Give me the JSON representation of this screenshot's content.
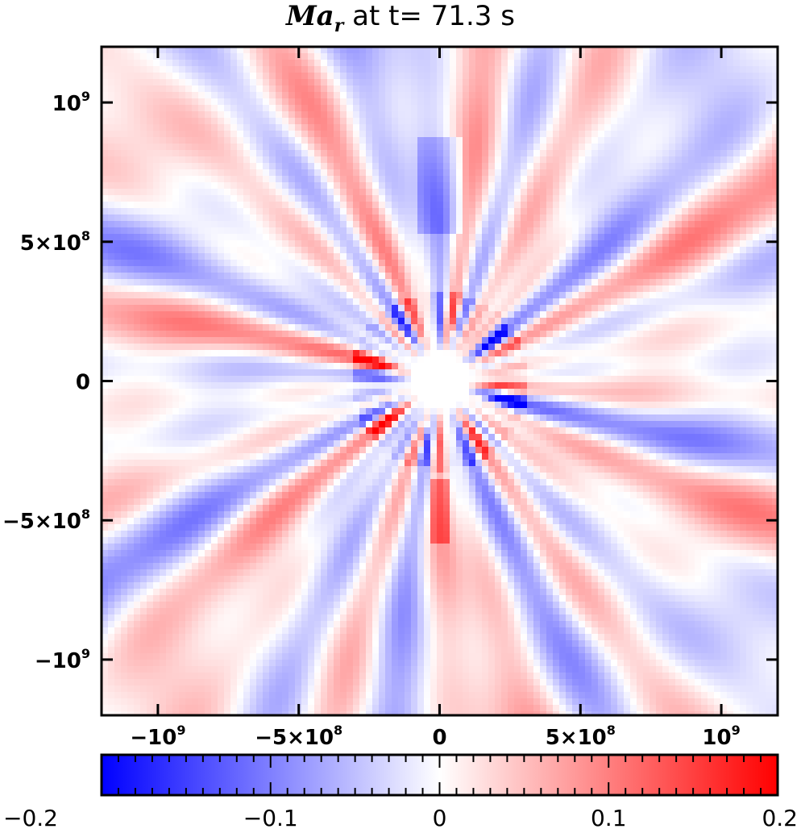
{
  "title": {
    "symbol": "Ma",
    "subscript": "r",
    "text": " at t=  71.3 s"
  },
  "chart_data": {
    "type": "heatmap",
    "variable": "Ma_r",
    "time": "71.3 s",
    "xlim": [
      -1200000000.0,
      1200000000.0
    ],
    "ylim": [
      -1200000000.0,
      1200000000.0
    ],
    "x_ticks": [
      {
        "value": -1000000000.0,
        "mant": "−10",
        "exp": "9"
      },
      {
        "value": -500000000.0,
        "mant": "−5×10",
        "exp": "8"
      },
      {
        "value": 0,
        "mant": "0",
        "exp": ""
      },
      {
        "value": 500000000.0,
        "mant": "5×10",
        "exp": "8"
      },
      {
        "value": 1000000000.0,
        "mant": "10",
        "exp": "9"
      }
    ],
    "y_ticks": [
      {
        "value": 1000000000.0,
        "mant": "10",
        "exp": "9"
      },
      {
        "value": 500000000.0,
        "mant": "5×10",
        "exp": "8"
      },
      {
        "value": 0,
        "mant": "0",
        "exp": ""
      },
      {
        "value": -500000000.0,
        "mant": "−5×10",
        "exp": "8"
      },
      {
        "value": -1000000000.0,
        "mant": "−10",
        "exp": "9"
      }
    ],
    "colorbar": {
      "range": [
        -0.2,
        0.2
      ],
      "colors": [
        "#0000ff",
        "#ffffff",
        "#ff0000"
      ],
      "labels": [
        {
          "value": -0.2,
          "text": "−0.2"
        },
        {
          "value": -0.1,
          "text": "−0.1"
        },
        {
          "value": 0,
          "text": "0"
        },
        {
          "value": 0.1,
          "text": "0.1"
        },
        {
          "value": 0.2,
          "text": "0.2"
        }
      ]
    }
  }
}
